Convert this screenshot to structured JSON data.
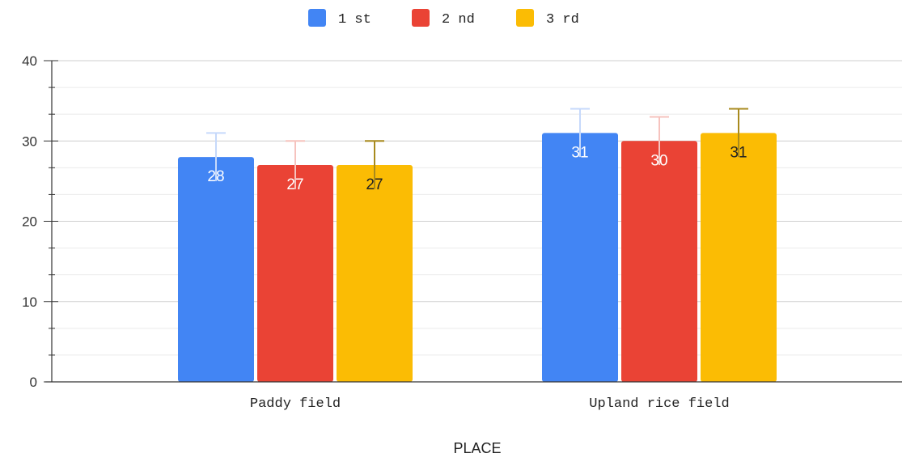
{
  "chart_data": {
    "type": "bar",
    "title": "",
    "xlabel": "PLACE",
    "ylabel": "",
    "categories": [
      "Paddy field",
      "Upland rice field"
    ],
    "series": [
      {
        "name": "1 st",
        "color": "#4285f4",
        "values": [
          28,
          31
        ],
        "errors": [
          3,
          3
        ],
        "label_color": "#ffffff",
        "error_color": "#c6d9fb"
      },
      {
        "name": "2 nd",
        "color": "#ea4335",
        "values": [
          27,
          30
        ],
        "errors": [
          3,
          3
        ],
        "label_color": "#ffffff",
        "error_color": "#f6c3be"
      },
      {
        "name": "3 rd",
        "color": "#fbbc04",
        "values": [
          27,
          31
        ],
        "errors": [
          3,
          3
        ],
        "label_color": "#222222",
        "error_color": "#a88a1e"
      }
    ],
    "ylim": [
      0,
      40
    ],
    "yticks": [
      0,
      10,
      20,
      30,
      40
    ],
    "grid": true,
    "legend": "top-center"
  }
}
